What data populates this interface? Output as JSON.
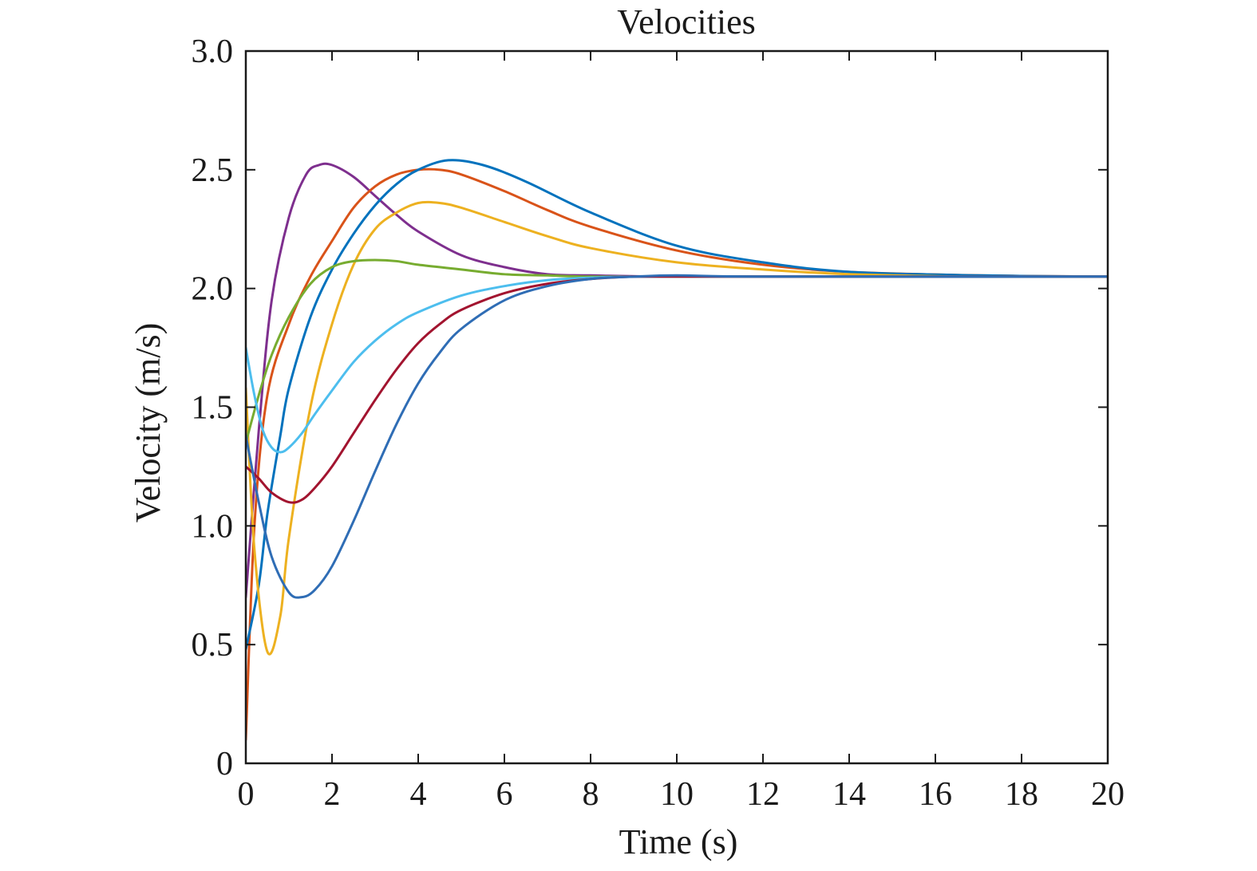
{
  "chart_data": {
    "type": "line",
    "title": "Velocities",
    "xlabel": "Time (s)",
    "ylabel": "Velocity (m/s)",
    "xlim": [
      0,
      20
    ],
    "ylim": [
      0,
      3.0
    ],
    "xticks": [
      0,
      2,
      4,
      6,
      8,
      10,
      12,
      14,
      16,
      18,
      20
    ],
    "xtick_labels": [
      "0",
      "2",
      "4",
      "6",
      "8",
      "10",
      "12",
      "14",
      "16",
      "18",
      "20"
    ],
    "yticks": [
      0,
      0.5,
      1.0,
      1.5,
      2.0,
      2.5,
      3.0
    ],
    "ytick_labels": [
      "0",
      "0.5",
      "1.0",
      "1.5",
      "2.0",
      "2.5",
      "3.0"
    ],
    "grid": false,
    "legend": "none",
    "series": [
      {
        "color": "#7E2F8E",
        "x": [
          0,
          0.3,
          0.6,
          1.0,
          1.4,
          1.7,
          2.0,
          2.5,
          3.0,
          3.5,
          4.0,
          5.0,
          6.0,
          7.0,
          8.0,
          10,
          14,
          20
        ],
        "y": [
          0.7,
          1.4,
          1.95,
          2.3,
          2.48,
          2.52,
          2.52,
          2.47,
          2.39,
          2.31,
          2.24,
          2.14,
          2.09,
          2.06,
          2.055,
          2.05,
          2.05,
          2.05
        ]
      },
      {
        "color": "#D95319",
        "x": [
          0,
          0.2,
          0.5,
          1.0,
          1.5,
          2.0,
          2.5,
          3.0,
          3.5,
          4.0,
          4.5,
          5.0,
          6.0,
          7.0,
          8.0,
          10,
          12,
          14,
          17,
          20
        ],
        "y": [
          0.1,
          1.0,
          1.55,
          1.85,
          2.05,
          2.2,
          2.34,
          2.43,
          2.48,
          2.5,
          2.5,
          2.48,
          2.41,
          2.33,
          2.26,
          2.16,
          2.1,
          2.07,
          2.055,
          2.05
        ]
      },
      {
        "color": "#0072BD",
        "x": [
          0,
          0.3,
          0.5,
          0.8,
          1.0,
          1.5,
          2.0,
          2.5,
          3.0,
          3.5,
          4.0,
          4.7,
          5.5,
          6.5,
          8.0,
          10,
          12,
          14,
          17,
          20
        ],
        "y": [
          0.48,
          0.75,
          1.05,
          1.38,
          1.58,
          1.88,
          2.08,
          2.23,
          2.35,
          2.44,
          2.5,
          2.54,
          2.52,
          2.45,
          2.32,
          2.18,
          2.11,
          2.07,
          2.055,
          2.05
        ]
      },
      {
        "color": "#EDB120",
        "x": [
          0,
          0.2,
          0.5,
          0.8,
          1.0,
          1.5,
          2.0,
          2.5,
          3.0,
          3.5,
          4.0,
          4.5,
          5.0,
          6.0,
          7.0,
          8.0,
          10,
          12,
          14,
          17,
          20
        ],
        "y": [
          1.58,
          0.9,
          0.47,
          0.62,
          0.95,
          1.5,
          1.85,
          2.1,
          2.25,
          2.32,
          2.36,
          2.36,
          2.34,
          2.28,
          2.22,
          2.17,
          2.11,
          2.08,
          2.06,
          2.05,
          2.05
        ]
      },
      {
        "color": "#77AC30",
        "x": [
          0,
          0.3,
          0.6,
          1.0,
          1.5,
          2.0,
          2.5,
          3.0,
          3.5,
          4.0,
          5.0,
          6.0,
          7.0,
          8.0,
          10,
          20
        ],
        "y": [
          1.35,
          1.55,
          1.72,
          1.88,
          2.02,
          2.09,
          2.115,
          2.12,
          2.115,
          2.1,
          2.08,
          2.06,
          2.055,
          2.05,
          2.05,
          2.05
        ]
      },
      {
        "color": "#4DBEEE",
        "x": [
          0,
          0.2,
          0.4,
          0.6,
          0.8,
          1.0,
          1.3,
          1.6,
          2.0,
          2.5,
          3.0,
          3.5,
          4.0,
          5.0,
          6.0,
          7.0,
          8.0,
          10,
          20
        ],
        "y": [
          1.75,
          1.55,
          1.4,
          1.33,
          1.31,
          1.33,
          1.39,
          1.47,
          1.57,
          1.69,
          1.78,
          1.85,
          1.9,
          1.97,
          2.01,
          2.035,
          2.045,
          2.05,
          2.05
        ]
      },
      {
        "color": "#A2142F",
        "x": [
          0,
          0.3,
          0.6,
          1.0,
          1.3,
          1.6,
          2.0,
          2.5,
          3.0,
          3.5,
          4.0,
          4.5,
          5.0,
          6.0,
          7.0,
          8.0,
          9.0,
          10,
          20
        ],
        "y": [
          1.25,
          1.2,
          1.14,
          1.1,
          1.11,
          1.16,
          1.25,
          1.39,
          1.53,
          1.66,
          1.77,
          1.85,
          1.91,
          1.98,
          2.02,
          2.04,
          2.05,
          2.05,
          2.05
        ]
      },
      {
        "color": "#2F6DB5",
        "x": [
          0,
          0.3,
          0.6,
          1.0,
          1.3,
          1.6,
          2.0,
          2.5,
          3.0,
          3.5,
          4.0,
          4.5,
          5.0,
          6.0,
          7.0,
          8.0,
          9.0,
          10,
          12,
          20
        ],
        "y": [
          1.38,
          1.1,
          0.87,
          0.72,
          0.7,
          0.73,
          0.83,
          1.02,
          1.23,
          1.43,
          1.6,
          1.73,
          1.83,
          1.95,
          2.01,
          2.04,
          2.05,
          2.055,
          2.05,
          2.05
        ]
      }
    ]
  }
}
